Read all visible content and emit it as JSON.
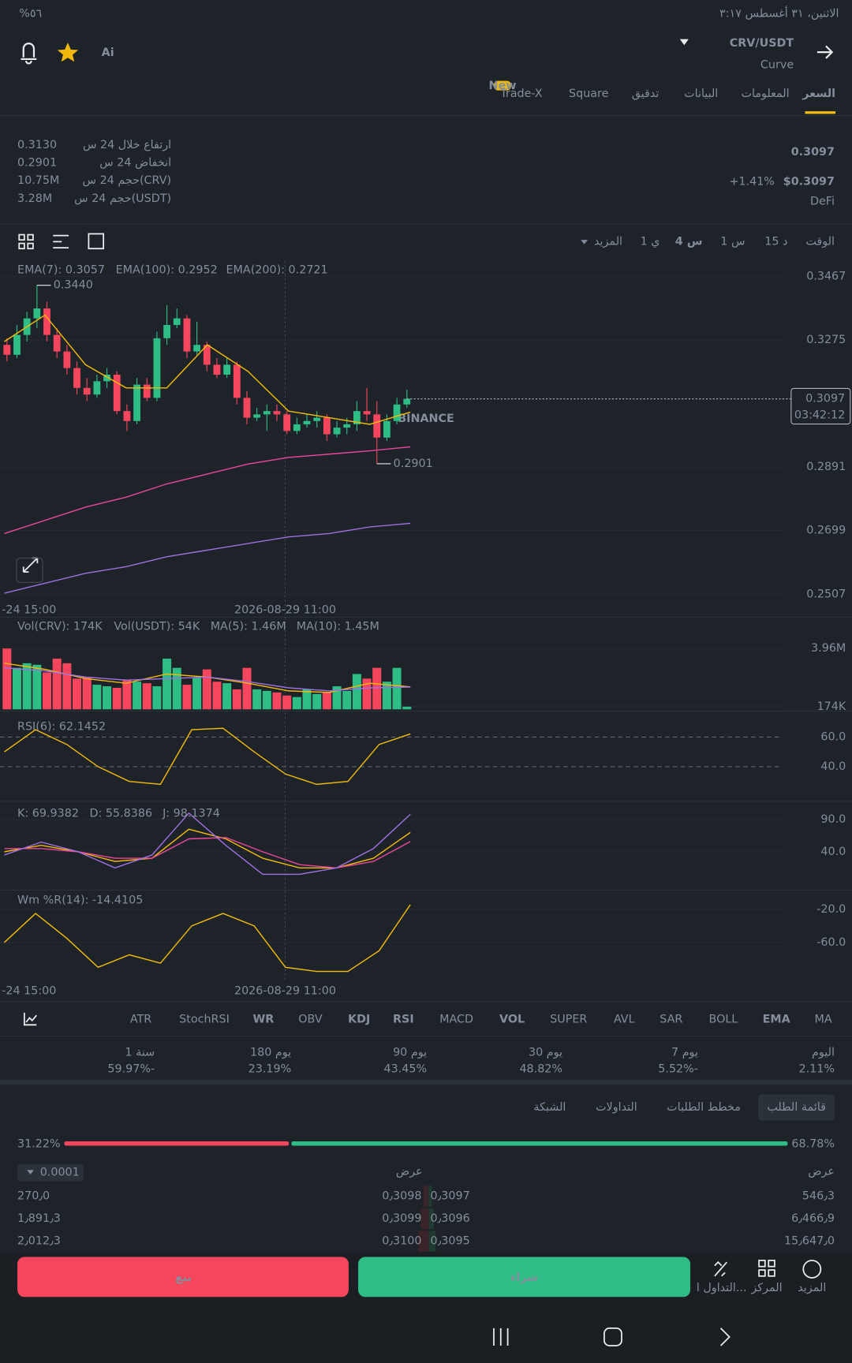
{
  "status_bar": {
    "battery": "%٥٦",
    "datetime": "الاثنين، ٣١ أغسطس  ٣:١٧"
  },
  "header": {
    "ai": "Ai",
    "pair": "CRV/USDT",
    "name": "Curve"
  },
  "tabs": {
    "items": [
      "السعر",
      "المعلومات",
      "البيانات",
      "تدقيق",
      "Square",
      "Trade-X"
    ],
    "badge": "New"
  },
  "price": {
    "last": "0.3097",
    "change": "+1.41%",
    "usd": "$0.3097",
    "tag": "DeFi"
  },
  "stats": [
    [
      "ارتفاع خلال 24 س",
      "0.3130"
    ],
    [
      "انخفاض 24 س",
      "0.2901"
    ],
    [
      "حجم 24 س(CRV)",
      "10.75M"
    ],
    [
      "حجم 24 س(USDT)",
      "3.28M"
    ]
  ],
  "intervals": [
    "الوقت",
    "15 د",
    "1 س",
    "4 س",
    "1 ي",
    "المزيد"
  ],
  "watermark": "BINANCE",
  "chart_data": [
    {
      "type": "candlestick",
      "ylim": [
        0.249,
        0.3514
      ],
      "yticks": [
        0.3467,
        0.3275,
        0.2891,
        0.2699,
        0.2507
      ],
      "grid": true,
      "x_labels": [
        "-24 15:00",
        "2026-08-29 11:00"
      ],
      "candles": [
        [
          0.326,
          0.323,
          0.328,
          0.321
        ],
        [
          0.323,
          0.329,
          0.332,
          0.322
        ],
        [
          0.329,
          0.334,
          0.336,
          0.327
        ],
        [
          0.334,
          0.337,
          0.344,
          0.331
        ],
        [
          0.337,
          0.329,
          0.339,
          0.327
        ],
        [
          0.329,
          0.324,
          0.331,
          0.322
        ],
        [
          0.324,
          0.319,
          0.326,
          0.317
        ],
        [
          0.319,
          0.313,
          0.321,
          0.311
        ],
        [
          0.313,
          0.311,
          0.316,
          0.309
        ],
        [
          0.311,
          0.315,
          0.317,
          0.31
        ],
        [
          0.315,
          0.317,
          0.319,
          0.313
        ],
        [
          0.317,
          0.306,
          0.318,
          0.305
        ],
        [
          0.306,
          0.303,
          0.308,
          0.3
        ],
        [
          0.303,
          0.314,
          0.316,
          0.302
        ],
        [
          0.314,
          0.31,
          0.316,
          0.309
        ],
        [
          0.31,
          0.328,
          0.33,
          0.309
        ],
        [
          0.328,
          0.332,
          0.338,
          0.326
        ],
        [
          0.332,
          0.334,
          0.337,
          0.331
        ],
        [
          0.334,
          0.324,
          0.335,
          0.322
        ],
        [
          0.324,
          0.326,
          0.333,
          0.323
        ],
        [
          0.326,
          0.32,
          0.327,
          0.318
        ],
        [
          0.32,
          0.317,
          0.322,
          0.316
        ],
        [
          0.317,
          0.32,
          0.322,
          0.316
        ],
        [
          0.32,
          0.31,
          0.321,
          0.308
        ],
        [
          0.31,
          0.304,
          0.312,
          0.302
        ],
        [
          0.304,
          0.305,
          0.307,
          0.303
        ],
        [
          0.305,
          0.306,
          0.308,
          0.3
        ],
        [
          0.306,
          0.305,
          0.308,
          0.303
        ],
        [
          0.305,
          0.3,
          0.306,
          0.299
        ],
        [
          0.3,
          0.302,
          0.304,
          0.299
        ],
        [
          0.302,
          0.303,
          0.305,
          0.301
        ],
        [
          0.303,
          0.304,
          0.306,
          0.301
        ],
        [
          0.304,
          0.299,
          0.305,
          0.297
        ],
        [
          0.299,
          0.301,
          0.303,
          0.298
        ],
        [
          0.301,
          0.302,
          0.304,
          0.299
        ],
        [
          0.302,
          0.306,
          0.309,
          0.3
        ],
        [
          0.306,
          0.305,
          0.313,
          0.303
        ],
        [
          0.305,
          0.298,
          0.309,
          0.2901
        ],
        [
          0.298,
          0.303,
          0.305,
          0.297
        ],
        [
          0.303,
          0.308,
          0.31,
          0.302
        ],
        [
          0.308,
          0.3097,
          0.3125,
          0.307
        ]
      ],
      "high": {
        "value": 0.344,
        "label": "0.3440"
      },
      "low": 0.2901,
      "last": 0.3097,
      "countdown": "03:42:12",
      "series": [
        {
          "name": "EMA(7): 0.3057",
          "color": "#f0b90b",
          "values": [
            0.327,
            0.335,
            0.32,
            0.313,
            0.313,
            0.326,
            0.318,
            0.306,
            0.304,
            0.302,
            0.3057
          ]
        },
        {
          "name": "EMA(100): 0.2952",
          "color": "#e8489a",
          "values": [
            0.269,
            0.273,
            0.277,
            0.28,
            0.284,
            0.287,
            0.29,
            0.292,
            0.293,
            0.294,
            0.2952
          ]
        },
        {
          "name": "EMA(200): 0.2721",
          "color": "#9d6fe0",
          "values": [
            0.251,
            0.254,
            0.257,
            0.259,
            0.262,
            0.264,
            0.266,
            0.268,
            0.269,
            0.271,
            0.2721
          ]
        }
      ]
    },
    {
      "type": "bar",
      "ylim": [
        0,
        5660000
      ],
      "yticks": [
        {
          "value": 3960000,
          "label": "3.96M"
        },
        {
          "value": 174000,
          "label": "174K"
        }
      ],
      "legend": [
        "Vol(CRV): 174K",
        "Vol(USDT): 54K"
      ],
      "values": [
        3960000,
        2700000,
        3000000,
        2900000,
        2400000,
        3300000,
        3000000,
        2000000,
        2100000,
        1600000,
        1500000,
        1400000,
        1900000,
        1800000,
        1700000,
        1500000,
        3300000,
        2700000,
        1600000,
        2100000,
        2600000,
        1800000,
        1700000,
        1300000,
        2700000,
        1300000,
        1200000,
        1100000,
        900000,
        800000,
        1300000,
        1000000,
        1100000,
        1500000,
        1200000,
        2300000,
        2000000,
        2700000,
        1800000,
        2700000,
        174000
      ],
      "series": [
        {
          "name": "MA(5): 1.46M",
          "color": "#f0b90b",
          "values": [
            3000000,
            2600000,
            2000000,
            1700000,
            2300000,
            2100000,
            1700000,
            1200000,
            1100000,
            1700000,
            1460000
          ]
        },
        {
          "name": "MA(10): 1.45M",
          "color": "#9d6fe0",
          "values": [
            2700000,
            2500000,
            2100000,
            1900000,
            2000000,
            2100000,
            1800000,
            1400000,
            1200000,
            1400000,
            1450000
          ]
        }
      ]
    },
    {
      "type": "line",
      "ylim": [
        17.6,
        73.5
      ],
      "yticks": [
        {
          "value": 60,
          "label": "60.0"
        },
        {
          "value": 40,
          "label": "40.0"
        }
      ],
      "series": [
        {
          "name": "RSI(6): 62.1452",
          "color": "#f0b90b",
          "values": [
            50,
            65,
            55,
            40,
            30,
            28,
            65,
            66,
            50,
            35,
            28,
            30,
            55,
            62.1452
          ]
        }
      ]
    },
    {
      "type": "line",
      "ylim": [
        -16.8,
        114
      ],
      "yticks": [
        {
          "value": 90,
          "label": "90.0"
        },
        {
          "value": 40,
          "label": "40.0"
        }
      ],
      "series": [
        {
          "name": "K: 69.9382",
          "color": "#f0b90b",
          "values": [
            40,
            50,
            40,
            25,
            30,
            75,
            60,
            30,
            15,
            15,
            30,
            69.9382
          ]
        },
        {
          "name": "D: 55.8386",
          "color": "#e8489a",
          "values": [
            45,
            45,
            40,
            30,
            30,
            60,
            62,
            40,
            20,
            15,
            25,
            55.8386
          ]
        },
        {
          "name": "J: 98.1374",
          "color": "#9d6fe0",
          "values": [
            35,
            55,
            40,
            15,
            35,
            100,
            50,
            5,
            5,
            15,
            45,
            98.1374
          ]
        }
      ]
    },
    {
      "type": "line",
      "ylim": [
        -106,
        2.1
      ],
      "yticks": [
        {
          "value": -20,
          "label": "-20.0"
        },
        {
          "value": -60,
          "label": "-60.0"
        }
      ],
      "x_labels": [
        "-24 15:00",
        "2026-08-29 11:00"
      ],
      "series": [
        {
          "name": "Wm %R(14): -14.4105",
          "color": "#f0b90b",
          "values": [
            -60,
            -25,
            -55,
            -90,
            -75,
            -85,
            -40,
            -25,
            -40,
            -90,
            -95,
            -95,
            -70,
            -14.4105
          ]
        }
      ]
    }
  ],
  "indicators": [
    "ATR",
    "StochRSI",
    "WR",
    "OBV",
    "KDJ",
    "RSI",
    "MACD",
    "VOL",
    "SUPER",
    "AVL",
    "SAR",
    "BOLL",
    "EMA",
    "MA"
  ],
  "performance": [
    [
      "اليوم",
      "2.11%"
    ],
    [
      "7 يوم",
      "5.52%-"
    ],
    [
      "30 يوم",
      "48.82%"
    ],
    [
      "90 يوم",
      "43.45%"
    ],
    [
      "180 يوم",
      "23.19%"
    ],
    [
      "1 سنة",
      "59.97%-"
    ]
  ],
  "order_tabs": [
    "قائمة الطلب",
    "مخطط الطلبات",
    "التداولات",
    "الشبكة"
  ],
  "depth_ratio": {
    "values": [
      31.22,
      68.78
    ],
    "value_labels": [
      "31.22%",
      "68.78%"
    ]
  },
  "order_book": {
    "precision": "0.0001",
    "headers": [
      "عرض",
      "عرض"
    ],
    "rows": [
      [
        "270٫0",
        "0٫3098",
        "0٫3097",
        "546٫3"
      ],
      [
        "1٫891٫3",
        "0٫3099",
        "0٫3096",
        "6٫466٫9"
      ],
      [
        "2٫012٫3",
        "0٫3100",
        "0٫3095",
        "15٫647٫0"
      ]
    ]
  },
  "actions": {
    "sell": "بيع",
    "buy": "شراء",
    "menu": [
      "التداول ا...",
      "المركز",
      "المزيد"
    ]
  }
}
